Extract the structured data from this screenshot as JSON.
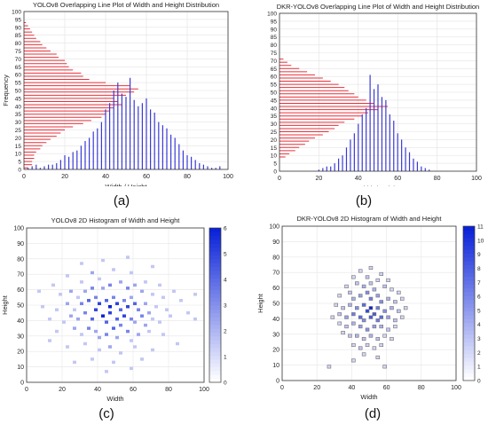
{
  "figure": {
    "captions": [
      "(a)",
      "(b)",
      "(c)",
      "(d)"
    ]
  },
  "colors": {
    "height_series": "#e8303a",
    "width_series": "#3a3ad8",
    "hist_max": "#0a22d8",
    "hist_min": "#ffffff",
    "cell_edge": "#707070"
  },
  "chart_data": [
    {
      "type": "bar",
      "title": "YOLOv8 Overlapping Line Plot of Width and Height Distribution",
      "xlabel": "Width / Height",
      "ylabel": "Frequency",
      "xlim": [
        0,
        100
      ],
      "ylim": [
        0,
        100
      ],
      "xticks": [
        0,
        20,
        40,
        60,
        80,
        100
      ],
      "yticks": [
        0,
        5,
        10,
        15,
        20,
        25,
        30,
        35,
        40,
        45,
        50,
        55,
        60,
        65,
        70,
        75,
        80,
        85,
        90,
        95,
        100
      ],
      "grid": true,
      "series": [
        {
          "orientation": "horizontal",
          "color": "#e8303a",
          "y": [
            1,
            3,
            5,
            7,
            9,
            11,
            13,
            15,
            17,
            19,
            21,
            23,
            25,
            27,
            29,
            31,
            33,
            35,
            37,
            39,
            41,
            43,
            45,
            47,
            49,
            51,
            53,
            55,
            57,
            59,
            61,
            63,
            65,
            67,
            69,
            71,
            73,
            75,
            77,
            79,
            81,
            83,
            85,
            87,
            89,
            91,
            93
          ],
          "values": [
            2,
            4,
            4,
            5,
            5,
            6,
            8,
            9,
            11,
            13,
            16,
            18,
            20,
            24,
            29,
            33,
            38,
            40,
            42,
            44,
            48,
            46,
            44,
            50,
            54,
            56,
            52,
            40,
            32,
            29,
            28,
            24,
            22,
            21,
            20,
            17,
            16,
            13,
            11,
            9,
            8,
            6,
            5,
            4,
            3,
            2,
            1
          ]
        },
        {
          "orientation": "vertical",
          "color": "#3a3ad8",
          "x": [
            2,
            4,
            6,
            8,
            10,
            12,
            14,
            16,
            18,
            20,
            22,
            24,
            26,
            28,
            30,
            32,
            34,
            36,
            38,
            40,
            42,
            44,
            46,
            48,
            50,
            52,
            54,
            56,
            58,
            60,
            62,
            64,
            66,
            68,
            70,
            72,
            74,
            76,
            78,
            80,
            82,
            84,
            86,
            88,
            90,
            92,
            94,
            96
          ],
          "values": [
            1,
            2,
            3,
            1,
            2,
            3,
            3,
            4,
            6,
            9,
            8,
            11,
            12,
            15,
            18,
            20,
            24,
            26,
            30,
            38,
            42,
            50,
            55,
            48,
            46,
            58,
            44,
            40,
            42,
            45,
            38,
            36,
            30,
            28,
            26,
            22,
            20,
            16,
            12,
            9,
            8,
            6,
            4,
            3,
            2,
            1,
            1,
            2
          ]
        }
      ]
    },
    {
      "type": "bar",
      "title": "DKR-YOLOv8 Overlapping Line Plot of Width and Height Distribution",
      "xlabel": "Width / Height",
      "ylabel": "",
      "xlim": [
        0,
        100
      ],
      "ylim": [
        0,
        100
      ],
      "xticks": [
        0,
        20,
        40,
        60,
        80,
        100
      ],
      "yticks": [
        0,
        5,
        10,
        15,
        20,
        25,
        30,
        35,
        40,
        45,
        50,
        55,
        60,
        65,
        70,
        75,
        80,
        85,
        90,
        95,
        100
      ],
      "grid": true,
      "series": [
        {
          "orientation": "horizontal",
          "color": "#e8303a",
          "y": [
            9,
            11,
            13,
            15,
            17,
            19,
            21,
            23,
            25,
            27,
            29,
            31,
            33,
            35,
            37,
            39,
            41,
            43,
            45,
            47,
            49,
            51,
            53,
            55,
            57,
            59,
            61,
            63,
            65,
            67,
            69,
            71
          ],
          "values": [
            3,
            5,
            8,
            10,
            13,
            15,
            18,
            22,
            25,
            28,
            30,
            33,
            38,
            42,
            45,
            50,
            55,
            48,
            44,
            40,
            38,
            35,
            33,
            30,
            26,
            22,
            18,
            14,
            10,
            6,
            4,
            2
          ]
        },
        {
          "orientation": "vertical",
          "color": "#3a3ad8",
          "x": [
            20,
            22,
            24,
            26,
            28,
            30,
            32,
            34,
            36,
            38,
            40,
            42,
            44,
            46,
            48,
            50,
            52,
            54,
            56,
            58,
            60,
            62,
            64,
            66,
            68,
            70,
            72,
            74,
            76
          ],
          "values": [
            1,
            2,
            3,
            3,
            5,
            8,
            10,
            15,
            20,
            24,
            30,
            36,
            40,
            61,
            52,
            55,
            47,
            45,
            36,
            32,
            24,
            20,
            15,
            12,
            8,
            6,
            3,
            2,
            1
          ]
        }
      ]
    },
    {
      "type": "heatmap",
      "title": "YOLOv8 2D Histogram of Width and Height",
      "xlabel": "Width",
      "ylabel": "Height",
      "xlim": [
        0,
        100
      ],
      "ylim": [
        0,
        100
      ],
      "xticks": [
        0,
        20,
        40,
        60,
        80,
        100
      ],
      "yticks": [
        0,
        10,
        20,
        30,
        40,
        50,
        60,
        70,
        80,
        90,
        100
      ],
      "colorbar_ticks": [
        0,
        1,
        2,
        3,
        4,
        5,
        6
      ],
      "grid": true,
      "bin_size": 2,
      "cells": [
        [
          22,
          68,
          1
        ],
        [
          14,
          62,
          1
        ],
        [
          30,
          64,
          1
        ],
        [
          36,
          70,
          2
        ],
        [
          40,
          66,
          1
        ],
        [
          48,
          72,
          1
        ],
        [
          58,
          70,
          1
        ],
        [
          66,
          64,
          1
        ],
        [
          74,
          62,
          1
        ],
        [
          82,
          58,
          1
        ],
        [
          18,
          56,
          1
        ],
        [
          24,
          58,
          2
        ],
        [
          28,
          54,
          1
        ],
        [
          32,
          58,
          2
        ],
        [
          36,
          60,
          3
        ],
        [
          42,
          60,
          2
        ],
        [
          46,
          62,
          3
        ],
        [
          52,
          64,
          2
        ],
        [
          56,
          60,
          3
        ],
        [
          60,
          62,
          2
        ],
        [
          64,
          58,
          2
        ],
        [
          70,
          56,
          1
        ],
        [
          76,
          54,
          1
        ],
        [
          86,
          52,
          1
        ],
        [
          8,
          48,
          1
        ],
        [
          16,
          46,
          1
        ],
        [
          22,
          50,
          2
        ],
        [
          26,
          46,
          1
        ],
        [
          30,
          50,
          3
        ],
        [
          34,
          52,
          4
        ],
        [
          38,
          54,
          3
        ],
        [
          40,
          50,
          5
        ],
        [
          44,
          52,
          4
        ],
        [
          46,
          48,
          6
        ],
        [
          48,
          54,
          3
        ],
        [
          50,
          50,
          5
        ],
        [
          52,
          46,
          4
        ],
        [
          54,
          52,
          3
        ],
        [
          56,
          48,
          5
        ],
        [
          58,
          54,
          2
        ],
        [
          60,
          50,
          4
        ],
        [
          62,
          46,
          3
        ],
        [
          66,
          50,
          2
        ],
        [
          68,
          44,
          2
        ],
        [
          72,
          48,
          1
        ],
        [
          78,
          46,
          1
        ],
        [
          90,
          44,
          1
        ],
        [
          12,
          40,
          1
        ],
        [
          20,
          38,
          1
        ],
        [
          24,
          42,
          2
        ],
        [
          28,
          40,
          2
        ],
        [
          32,
          44,
          3
        ],
        [
          36,
          40,
          4
        ],
        [
          38,
          46,
          5
        ],
        [
          42,
          42,
          6
        ],
        [
          44,
          38,
          4
        ],
        [
          46,
          44,
          5
        ],
        [
          50,
          40,
          4
        ],
        [
          52,
          36,
          3
        ],
        [
          54,
          42,
          5
        ],
        [
          58,
          40,
          3
        ],
        [
          60,
          38,
          2
        ],
        [
          64,
          42,
          3
        ],
        [
          66,
          36,
          2
        ],
        [
          70,
          40,
          1
        ],
        [
          74,
          38,
          1
        ],
        [
          80,
          42,
          1
        ],
        [
          94,
          40,
          1
        ],
        [
          16,
          32,
          1
        ],
        [
          26,
          34,
          2
        ],
        [
          30,
          30,
          1
        ],
        [
          34,
          34,
          3
        ],
        [
          38,
          32,
          2
        ],
        [
          40,
          28,
          2
        ],
        [
          44,
          30,
          3
        ],
        [
          48,
          34,
          4
        ],
        [
          50,
          28,
          2
        ],
        [
          56,
          32,
          3
        ],
        [
          58,
          26,
          1
        ],
        [
          62,
          30,
          2
        ],
        [
          68,
          32,
          1
        ],
        [
          76,
          30,
          1
        ],
        [
          22,
          22,
          1
        ],
        [
          32,
          24,
          1
        ],
        [
          40,
          20,
          1
        ],
        [
          46,
          22,
          2
        ],
        [
          52,
          18,
          1
        ],
        [
          60,
          22,
          1
        ],
        [
          70,
          20,
          1
        ],
        [
          36,
          14,
          1
        ],
        [
          48,
          12,
          1
        ],
        [
          64,
          14,
          1
        ],
        [
          26,
          12,
          1
        ],
        [
          44,
          6,
          1
        ],
        [
          58,
          8,
          1
        ],
        [
          84,
          24,
          1
        ],
        [
          12,
          26,
          1
        ],
        [
          6,
          58,
          1
        ],
        [
          94,
          56,
          1
        ],
        [
          42,
          78,
          1
        ],
        [
          56,
          80,
          1
        ],
        [
          30,
          76,
          1
        ],
        [
          70,
          74,
          1
        ]
      ]
    },
    {
      "type": "heatmap",
      "title": "DKR-YOLOv8 2D Histogram of Width and Height",
      "xlabel": "Width",
      "ylabel": "Height",
      "xlim": [
        0,
        100
      ],
      "ylim": [
        0,
        100
      ],
      "xticks": [
        0,
        20,
        40,
        60,
        80,
        100
      ],
      "yticks": [
        0,
        10,
        20,
        30,
        40,
        50,
        60,
        70,
        80,
        90,
        100
      ],
      "colorbar_ticks": [
        0,
        1,
        2,
        3,
        4,
        5,
        6,
        7,
        8,
        9,
        10,
        11
      ],
      "grid": true,
      "bin_size": 2,
      "cells": [
        [
          44,
          70,
          1
        ],
        [
          50,
          72,
          1
        ],
        [
          56,
          68,
          1
        ],
        [
          40,
          66,
          1
        ],
        [
          48,
          66,
          2
        ],
        [
          54,
          64,
          1
        ],
        [
          60,
          64,
          1
        ],
        [
          36,
          60,
          1
        ],
        [
          42,
          62,
          2
        ],
        [
          46,
          60,
          3
        ],
        [
          50,
          62,
          2
        ],
        [
          52,
          58,
          3
        ],
        [
          58,
          60,
          2
        ],
        [
          62,
          58,
          1
        ],
        [
          66,
          56,
          1
        ],
        [
          32,
          54,
          1
        ],
        [
          38,
          56,
          2
        ],
        [
          40,
          52,
          3
        ],
        [
          44,
          54,
          4
        ],
        [
          48,
          56,
          5
        ],
        [
          50,
          52,
          6
        ],
        [
          54,
          54,
          4
        ],
        [
          56,
          50,
          5
        ],
        [
          60,
          52,
          3
        ],
        [
          64,
          50,
          2
        ],
        [
          68,
          52,
          1
        ],
        [
          30,
          48,
          1
        ],
        [
          34,
          46,
          2
        ],
        [
          38,
          48,
          3
        ],
        [
          42,
          46,
          5
        ],
        [
          46,
          48,
          7
        ],
        [
          48,
          44,
          9
        ],
        [
          50,
          46,
          11
        ],
        [
          52,
          42,
          8
        ],
        [
          54,
          46,
          6
        ],
        [
          58,
          44,
          5
        ],
        [
          62,
          46,
          3
        ],
        [
          66,
          44,
          2
        ],
        [
          70,
          46,
          1
        ],
        [
          28,
          40,
          1
        ],
        [
          32,
          42,
          2
        ],
        [
          36,
          40,
          4
        ],
        [
          40,
          42,
          6
        ],
        [
          44,
          40,
          7
        ],
        [
          46,
          38,
          5
        ],
        [
          50,
          40,
          8
        ],
        [
          54,
          38,
          6
        ],
        [
          56,
          40,
          7
        ],
        [
          60,
          40,
          4
        ],
        [
          64,
          38,
          2
        ],
        [
          68,
          40,
          1
        ],
        [
          32,
          36,
          1
        ],
        [
          36,
          34,
          2
        ],
        [
          40,
          36,
          3
        ],
        [
          44,
          34,
          4
        ],
        [
          48,
          32,
          5
        ],
        [
          52,
          34,
          4
        ],
        [
          56,
          34,
          3
        ],
        [
          60,
          32,
          2
        ],
        [
          64,
          34,
          1
        ],
        [
          34,
          30,
          1
        ],
        [
          38,
          28,
          2
        ],
        [
          42,
          28,
          3
        ],
        [
          46,
          26,
          2
        ],
        [
          50,
          28,
          3
        ],
        [
          54,
          26,
          2
        ],
        [
          58,
          28,
          1
        ],
        [
          62,
          26,
          1
        ],
        [
          40,
          22,
          1
        ],
        [
          44,
          20,
          2
        ],
        [
          48,
          22,
          1
        ],
        [
          52,
          20,
          1
        ],
        [
          56,
          22,
          1
        ],
        [
          46,
          16,
          1
        ],
        [
          54,
          14,
          1
        ],
        [
          40,
          12,
          1
        ],
        [
          26,
          8,
          1
        ],
        [
          58,
          8,
          1
        ]
      ]
    }
  ]
}
